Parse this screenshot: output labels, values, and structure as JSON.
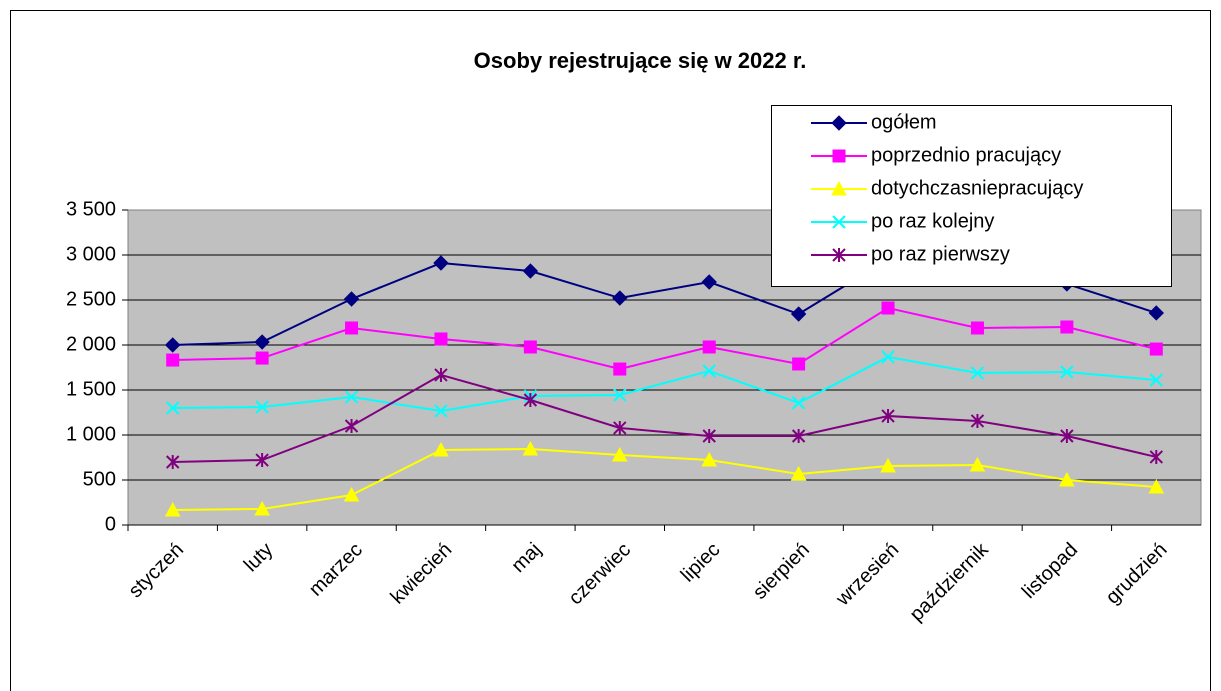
{
  "chart_data": {
    "type": "line",
    "title": "Osoby rejestrujące się w  2022 r.",
    "categories": [
      "styczeń",
      "luty",
      "marzec",
      "kwiecień",
      "maj",
      "czerwiec",
      "lipiec",
      "sierpień",
      "wrzesień",
      "październik",
      "listopad",
      "grudzień"
    ],
    "series": [
      {
        "name": "ogółem",
        "color": "#000080",
        "marker": "diamond",
        "values": [
          2000,
          2033,
          2511,
          2911,
          2822,
          2522,
          2700,
          2344,
          2950,
          2855,
          2678,
          2356
        ]
      },
      {
        "name": "poprzednio pracujący",
        "color": "#ff00ff",
        "marker": "square",
        "values": [
          1833,
          1855,
          2189,
          2067,
          1978,
          1733,
          1978,
          1789,
          2411,
          2189,
          2200,
          1955
        ]
      },
      {
        "name": "dotychczasniepracujący",
        "color": "#ffff00",
        "marker": "triangle",
        "values": [
          167,
          178,
          333,
          833,
          844,
          778,
          722,
          567,
          656,
          667,
          500,
          422
        ]
      },
      {
        "name": "po raz kolejny",
        "color": "#00ffff",
        "marker": "x",
        "values": [
          1300,
          1311,
          1422,
          1267,
          1433,
          1444,
          1711,
          1356,
          1867,
          1689,
          1700,
          1611
        ]
      },
      {
        "name": "po raz pierwszy",
        "color": "#800080",
        "marker": "star",
        "values": [
          700,
          722,
          1100,
          1667,
          1389,
          1078,
          989,
          989,
          1211,
          1156,
          989,
          756
        ]
      }
    ],
    "ylim": [
      0,
      3500
    ],
    "yticks": [
      0,
      500,
      {
        "value": 1000,
        "label": "1 000"
      },
      {
        "value": 1500,
        "label": "1 500"
      },
      {
        "value": 2000,
        "label": "2 000"
      },
      {
        "value": 2500,
        "label": "2 500"
      },
      {
        "value": 3000,
        "label": "3 000"
      },
      {
        "value": 3500,
        "label": "3 500"
      }
    ],
    "grid": true,
    "legend": "upper right"
  }
}
